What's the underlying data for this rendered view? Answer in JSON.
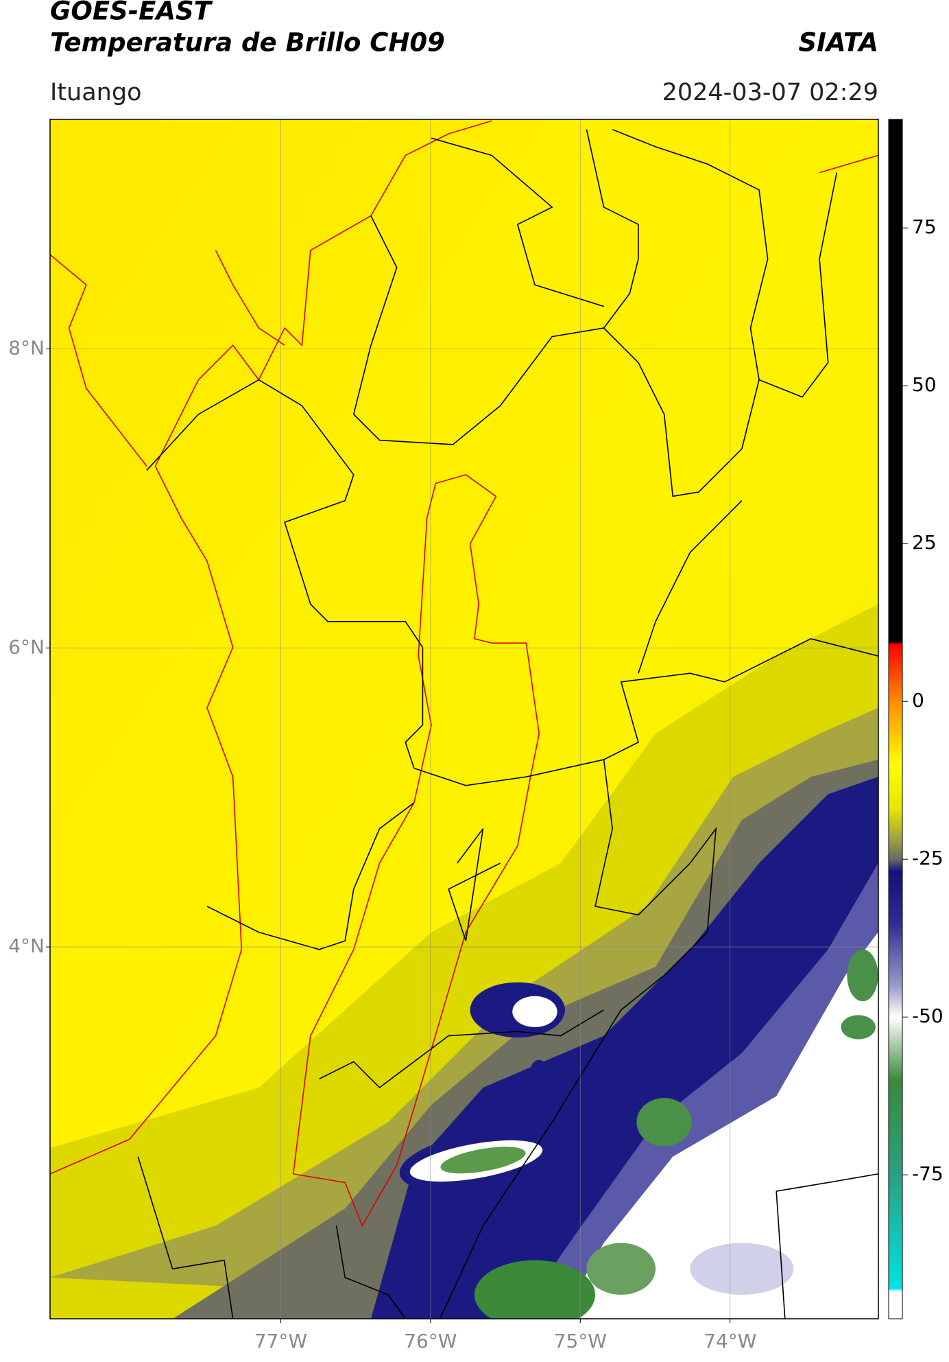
{
  "header": {
    "title": "GOES-EAST",
    "subtitle": "Temperatura de Brillo CH09",
    "agency": "SIATA",
    "location": "Ituango",
    "timestamp": "2024-03-07 02:29"
  },
  "map": {
    "lonlim": [
      -78.54,
      -73.01
    ],
    "latlim": [
      1.513,
      9.535
    ],
    "grid": true,
    "lonticks": [
      {
        "value": -77,
        "label": "77°W"
      },
      {
        "value": -76,
        "label": "76°W"
      },
      {
        "value": -75,
        "label": "75°W"
      },
      {
        "value": -74,
        "label": "74°W"
      }
    ],
    "latticks": [
      {
        "value": 8,
        "label": "8°N"
      },
      {
        "value": 6,
        "label": "6°N"
      },
      {
        "value": 4,
        "label": "4°N"
      }
    ]
  },
  "colorbar": {
    "lim": [
      -97.8,
      92.2
    ],
    "ticks": [
      75,
      50,
      25,
      0,
      -25,
      -50,
      -75
    ],
    "colormap": [
      {
        "value": 92.2,
        "color": "#000000"
      },
      {
        "value": 9.5,
        "color": "#000000"
      },
      {
        "value": 9,
        "color": "#ff0000"
      },
      {
        "value": 0,
        "color": "#ff8c00"
      },
      {
        "value": -10,
        "color": "#ffff00"
      },
      {
        "value": -17,
        "color": "#e6e600"
      },
      {
        "value": -22,
        "color": "#9e9e44"
      },
      {
        "value": -25,
        "color": "#6a6a62"
      },
      {
        "value": -27,
        "color": "#12127e"
      },
      {
        "value": -35,
        "color": "#2c2c92"
      },
      {
        "value": -45,
        "color": "#9a9ac8"
      },
      {
        "value": -50,
        "color": "#ffffff"
      },
      {
        "value": -60,
        "color": "#3a8a3a"
      },
      {
        "value": -75,
        "color": "#2aa080"
      },
      {
        "value": -93,
        "color": "#00e4e4"
      },
      {
        "value": -93.5,
        "color": "#ffffff"
      },
      {
        "value": -97.8,
        "color": "#ffffff"
      }
    ]
  }
}
